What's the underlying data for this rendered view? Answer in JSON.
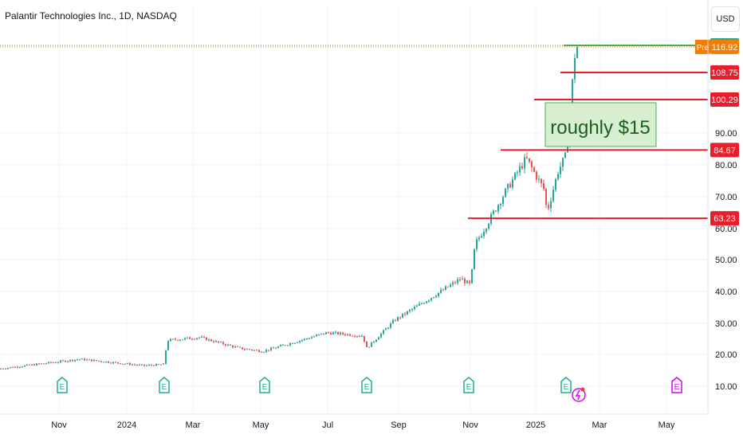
{
  "header": {
    "title": "Palantir Technologies Inc., 1D, NASDAQ",
    "currency": "USD"
  },
  "annotation": {
    "text": "roughly $15"
  },
  "colors": {
    "up": "#26a69a",
    "down": "#ef5350",
    "resistance": "#e91e2d",
    "top_line": "#4caf50",
    "pre_badge": "#f57c00",
    "annotation_fill": "#d7efd0",
    "annotation_text": "#1b5e20",
    "earnings": "#22ab94",
    "earnings_future": "#d500f9"
  },
  "chart_data": {
    "type": "candlestick",
    "title": "Palantir Technologies Inc., 1D, NASDAQ",
    "y_axis": {
      "ticks": [
        10,
        20,
        30,
        40,
        50,
        60,
        70,
        80,
        90
      ],
      "tick_labels": [
        "10.00",
        "20.00",
        "30.00",
        "40.00",
        "50.00",
        "60.00",
        "70.00",
        "80.00",
        "90.00"
      ],
      "ylim": [
        7,
        123
      ],
      "position": "right"
    },
    "x_axis": {
      "labels": [
        "Nov",
        "2024",
        "Mar",
        "May",
        "Jul",
        "Sep",
        "Nov",
        "2025",
        "Mar",
        "May"
      ]
    },
    "price_path": [
      [
        "Oct 2023",
        15.5
      ],
      [
        "Nov 2023",
        18.5
      ],
      [
        "Dec 2023",
        17.5
      ],
      [
        "Jan 2024",
        16.5
      ],
      [
        "Feb 2024",
        16.8
      ],
      [
        "Feb 2024",
        24.5
      ],
      [
        "Mar 2024",
        25.5
      ],
      [
        "Apr 2024",
        22.0
      ],
      [
        "May 2024",
        21.0
      ],
      [
        "Jun 2024",
        24.0
      ],
      [
        "Jul 2024",
        27.0
      ],
      [
        "Aug 2024",
        26.0
      ],
      [
        "Aug 2024",
        22.0
      ],
      [
        "Sep 2024",
        31.0
      ],
      [
        "Oct 2024",
        38.0
      ],
      [
        "Oct 2024",
        44.0
      ],
      [
        "Nov 2024",
        42.0
      ],
      [
        "Nov 2024",
        55.0
      ],
      [
        "Nov 2024",
        61.0
      ],
      [
        "Dec 2024",
        72.0
      ],
      [
        "Dec 2024",
        82.0
      ],
      [
        "Jan 2025",
        72.0
      ],
      [
        "Jan 2025",
        65.0
      ],
      [
        "Jan 2025",
        78.0
      ],
      [
        "Feb 2025",
        83.0
      ],
      [
        "Feb 2025",
        100.0
      ],
      [
        "Feb 2025",
        117.0
      ]
    ],
    "horizontal_lines": [
      {
        "label": "117.39",
        "value": 117.39,
        "color": "#4caf50"
      },
      {
        "label": "108.75",
        "value": 108.75,
        "color": "#e91e2d"
      },
      {
        "label": "100.29",
        "value": 100.29,
        "color": "#e91e2d"
      },
      {
        "label": "84.67",
        "value": 84.67,
        "color": "#e91e2d"
      },
      {
        "label": "63.23",
        "value": 63.23,
        "color": "#e91e2d"
      }
    ],
    "price_badges": [
      {
        "tag": "",
        "label": "117.39",
        "value": 117.39,
        "color": "#22ab94"
      },
      {
        "tag": "Pre",
        "label": "116.92",
        "value": 116.92,
        "color": "#f57c00"
      },
      {
        "tag": "",
        "label": "108.75",
        "value": 108.75,
        "color": "#e91e2d"
      },
      {
        "tag": "",
        "label": "100.29",
        "value": 100.29,
        "color": "#e91e2d"
      },
      {
        "tag": "",
        "label": "84.67",
        "value": 84.67,
        "color": "#e91e2d"
      },
      {
        "tag": "",
        "label": "63.23",
        "value": 63.23,
        "color": "#e91e2d"
      }
    ],
    "earnings_markers": [
      {
        "label": "E",
        "kind": "past"
      },
      {
        "label": "E",
        "kind": "past"
      },
      {
        "label": "E",
        "kind": "past"
      },
      {
        "label": "E",
        "kind": "past"
      },
      {
        "label": "E",
        "kind": "past"
      },
      {
        "label": "E",
        "kind": "past"
      },
      {
        "label": "E",
        "kind": "future"
      }
    ],
    "grid": true,
    "legend": "none"
  }
}
